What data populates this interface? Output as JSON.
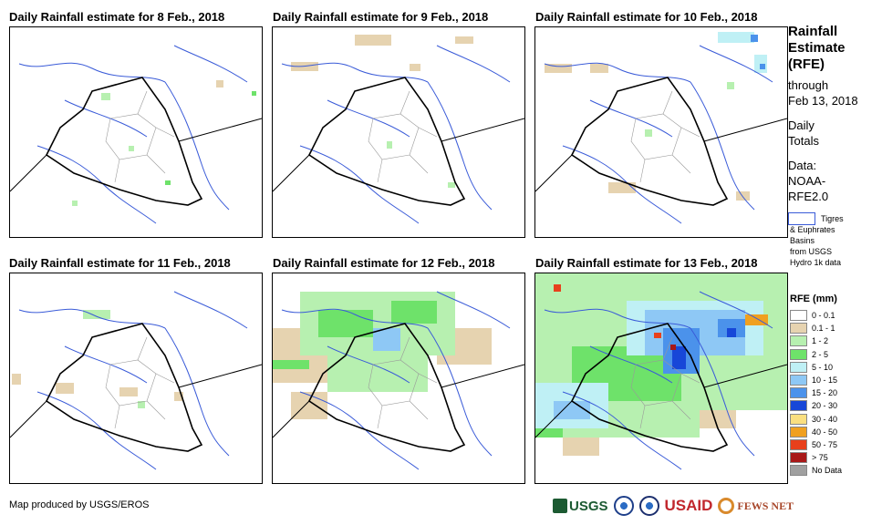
{
  "panels": [
    {
      "title": "Daily Rainfall estimate for 8 Feb., 2018"
    },
    {
      "title": "Daily Rainfall estimate for 9 Feb., 2018"
    },
    {
      "title": "Daily Rainfall estimate for 10 Feb., 2018"
    },
    {
      "title": "Daily Rainfall estimate for 11 Feb., 2018"
    },
    {
      "title": "Daily Rainfall estimate for 12 Feb., 2018"
    },
    {
      "title": "Daily Rainfall estimate for 13 Feb., 2018"
    }
  ],
  "side": {
    "title_1": "Rainfall",
    "title_2": "Estimate",
    "title_3": "(RFE)",
    "through_1": "through",
    "through_2": "Feb 13, 2018",
    "totals_1": "Daily",
    "totals_2": "Totals",
    "data_1": "Data:",
    "data_2": "NOAA-",
    "data_3": "RFE2.0",
    "basin_1": "Tigres",
    "basin_2": "& Euphrates",
    "basin_3": "Basins",
    "basin_4": "from USGS",
    "basin_5": "Hydro 1k data"
  },
  "legend": {
    "title": "RFE (mm)",
    "items": [
      {
        "label": "0 - 0.1",
        "color": "#ffffff"
      },
      {
        "label": "0.1 - 1",
        "color": "#e6d3b0"
      },
      {
        "label": "1 - 2",
        "color": "#b7f0b0"
      },
      {
        "label": "2 - 5",
        "color": "#6ee26a"
      },
      {
        "label": "5 - 10",
        "color": "#bff0f5"
      },
      {
        "label": "10 - 15",
        "color": "#8ec8f5"
      },
      {
        "label": "15 - 20",
        "color": "#4b92eb"
      },
      {
        "label": "20 - 30",
        "color": "#1747d8"
      },
      {
        "label": "30 - 40",
        "color": "#fadf80"
      },
      {
        "label": "40 - 50",
        "color": "#f0a020"
      },
      {
        "label": "50 - 75",
        "color": "#e8401c"
      },
      {
        "label": "> 75",
        "color": "#a81818"
      },
      {
        "label": "No Data",
        "color": "#a0a0a0"
      }
    ]
  },
  "footer": {
    "credit": "Map produced by USGS/EROS"
  },
  "logos": {
    "usgs": "USGS",
    "usaid": "USAID",
    "fews": "FEWS NET"
  }
}
